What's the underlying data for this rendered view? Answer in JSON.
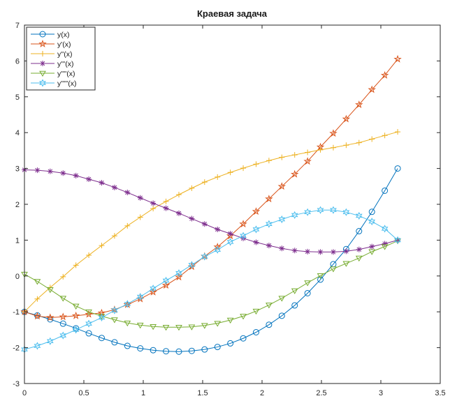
{
  "chart_data": {
    "type": "line",
    "title": "Краевая задача",
    "xlabel": "",
    "ylabel": "",
    "xlim": [
      0,
      3.5
    ],
    "ylim": [
      -3,
      7
    ],
    "xticks": [
      "0",
      "0.5",
      "1",
      "1.5",
      "2",
      "2.5",
      "3",
      "3.5"
    ],
    "yticks": [
      "-3",
      "-2",
      "-1",
      "0",
      "1",
      "2",
      "3",
      "4",
      "5",
      "6",
      "7"
    ],
    "grid": false,
    "legend_position": "top-left",
    "x": [
      0,
      0.1083,
      0.2166,
      0.325,
      0.4333,
      0.5416,
      0.6499,
      0.7583,
      0.8666,
      0.9749,
      1.0832,
      1.1916,
      1.2999,
      1.4082,
      1.5165,
      1.6249,
      1.7332,
      1.8415,
      1.9498,
      2.0582,
      2.1665,
      2.2748,
      2.3831,
      2.4915,
      2.5998,
      2.7081,
      2.8164,
      2.9248,
      3.0331,
      3.1416
    ],
    "series": [
      {
        "name": "y(x)",
        "color": "#0072BD",
        "marker": "circle",
        "values": [
          -1.0,
          -1.1,
          -1.21,
          -1.33,
          -1.46,
          -1.6,
          -1.73,
          -1.85,
          -1.95,
          -2.02,
          -2.07,
          -2.1,
          -2.11,
          -2.09,
          -2.05,
          -1.98,
          -1.88,
          -1.74,
          -1.57,
          -1.36,
          -1.11,
          -0.82,
          -0.48,
          -0.1,
          0.33,
          0.75,
          1.25,
          1.79,
          2.38,
          3.0
        ]
      },
      {
        "name": "y'(x)",
        "color": "#D95319",
        "marker": "star",
        "values": [
          -1.0,
          -1.12,
          -1.16,
          -1.14,
          -1.11,
          -1.07,
          -1.03,
          -0.94,
          -0.8,
          -0.64,
          -0.45,
          -0.26,
          -0.03,
          0.26,
          0.55,
          0.81,
          1.12,
          1.45,
          1.8,
          2.15,
          2.5,
          2.84,
          3.2,
          3.6,
          3.98,
          4.38,
          4.78,
          5.2,
          5.6,
          6.05
        ]
      },
      {
        "name": "y''(x)",
        "color": "#EDB120",
        "marker": "plus",
        "values": [
          -1.0,
          -0.64,
          -0.32,
          -0.02,
          0.3,
          0.58,
          0.85,
          1.12,
          1.4,
          1.64,
          1.88,
          2.08,
          2.27,
          2.45,
          2.62,
          2.76,
          2.89,
          3.01,
          3.12,
          3.22,
          3.31,
          3.38,
          3.45,
          3.52,
          3.58,
          3.65,
          3.72,
          3.82,
          3.92,
          4.02
        ]
      },
      {
        "name": "y'''(x)",
        "color": "#7E2F8E",
        "marker": "asterisk",
        "values": [
          2.96,
          2.95,
          2.92,
          2.87,
          2.8,
          2.7,
          2.6,
          2.47,
          2.33,
          2.18,
          2.03,
          1.89,
          1.75,
          1.6,
          1.45,
          1.3,
          1.18,
          1.05,
          0.94,
          0.85,
          0.77,
          0.71,
          0.68,
          0.67,
          0.67,
          0.69,
          0.74,
          0.82,
          0.9,
          1.0
        ]
      },
      {
        "name": "y''''(x)",
        "color": "#77AC30",
        "marker": "triangle-down",
        "values": [
          0.05,
          -0.15,
          -0.38,
          -0.62,
          -0.84,
          -1.0,
          -1.12,
          -1.22,
          -1.31,
          -1.37,
          -1.41,
          -1.43,
          -1.43,
          -1.42,
          -1.38,
          -1.32,
          -1.23,
          -1.12,
          -0.98,
          -0.81,
          -0.62,
          -0.41,
          -0.19,
          0.01,
          0.2,
          0.35,
          0.5,
          0.68,
          0.82,
          0.98
        ]
      },
      {
        "name": "y'''''(x)",
        "color": "#4DBEEE",
        "marker": "hexagram",
        "values": [
          -2.05,
          -1.95,
          -1.82,
          -1.66,
          -1.5,
          -1.33,
          -1.16,
          -0.96,
          -0.78,
          -0.58,
          -0.35,
          -0.13,
          0.08,
          0.31,
          0.54,
          0.73,
          0.95,
          1.12,
          1.3,
          1.45,
          1.58,
          1.7,
          1.78,
          1.84,
          1.84,
          1.78,
          1.68,
          1.52,
          1.32,
          1.0
        ]
      }
    ]
  }
}
